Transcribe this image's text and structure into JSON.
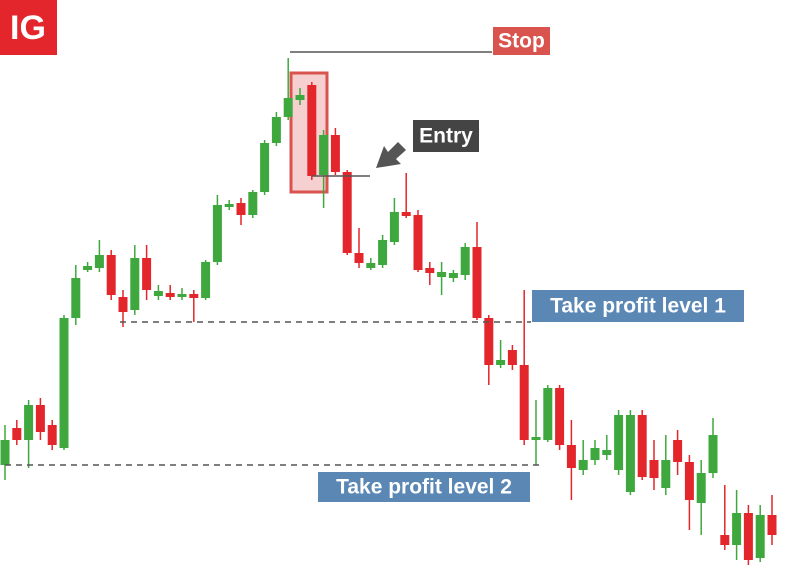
{
  "logo": "IG",
  "chart_data": {
    "type": "candlestick",
    "ylim": [
      0,
      577
    ],
    "up_color": "#3ea83e",
    "down_color": "#e3262b",
    "open": [
      112,
      149,
      137,
      172,
      152,
      129,
      259,
      307,
      309,
      322,
      280,
      267,
      319,
      281,
      284,
      280,
      283,
      279,
      315,
      370,
      374,
      362,
      385,
      434,
      460,
      477,
      492,
      402,
      442,
      405,
      324,
      309,
      312,
      335,
      365,
      362,
      309,
      300,
      299,
      302,
      330,
      259,
      212,
      227,
      212,
      137,
      137,
      189,
      132,
      107,
      117,
      122,
      107,
      85,
      162,
      117,
      89,
      137,
      115,
      74,
      104,
      42,
      32,
      64,
      19,
      62
    ],
    "high": [
      152,
      157,
      177,
      179,
      157,
      262,
      312,
      315,
      337,
      327,
      287,
      332,
      332,
      292,
      292,
      289,
      287,
      317,
      382,
      377,
      379,
      387,
      437,
      465,
      519,
      489,
      495,
      447,
      449,
      407,
      349,
      319,
      342,
      379,
      404,
      367,
      315,
      315,
      307,
      334,
      355,
      262,
      237,
      232,
      287,
      177,
      192,
      192,
      157,
      137,
      137,
      142,
      167,
      167,
      167,
      137,
      142,
      147,
      122,
      117,
      159,
      92,
      87,
      72,
      72,
      82
    ],
    "low": [
      97,
      132,
      109,
      137,
      127,
      127,
      252,
      305,
      305,
      277,
      250,
      262,
      277,
      277,
      277,
      277,
      255,
      277,
      312,
      367,
      352,
      359,
      382,
      431,
      457,
      472,
      397,
      369,
      402,
      322,
      309,
      307,
      309,
      332,
      359,
      305,
      292,
      282,
      295,
      297,
      257,
      192,
      209,
      207,
      132,
      112,
      135,
      127,
      77,
      102,
      112,
      117,
      102,
      82,
      97,
      87,
      82,
      102,
      47,
      42,
      99,
      27,
      17,
      12,
      15,
      32
    ],
    "close": [
      137,
      137,
      172,
      145,
      132,
      259,
      299,
      311,
      322,
      282,
      265,
      319,
      287,
      286,
      280,
      283,
      279,
      315,
      372,
      373,
      362,
      385,
      434,
      460,
      479,
      482,
      401,
      442,
      405,
      324,
      314,
      314,
      337,
      365,
      361,
      307,
      304,
      305,
      304,
      330,
      259,
      212,
      217,
      212,
      137,
      140,
      189,
      132,
      109,
      117,
      129,
      127,
      162,
      162,
      100,
      99,
      117,
      115,
      77,
      104,
      142,
      32,
      64,
      17,
      62,
      42
    ],
    "annotations": [
      {
        "label": "Stop",
        "value": 525,
        "color": "#d9534f"
      },
      {
        "label": "Entry",
        "value": 401,
        "color": "#444444"
      },
      {
        "label": "Take profit level 1",
        "value": 255,
        "color": "#5a87b4"
      },
      {
        "label": "Take profit level 2",
        "value": 112,
        "color": "#5a87b4"
      }
    ]
  }
}
